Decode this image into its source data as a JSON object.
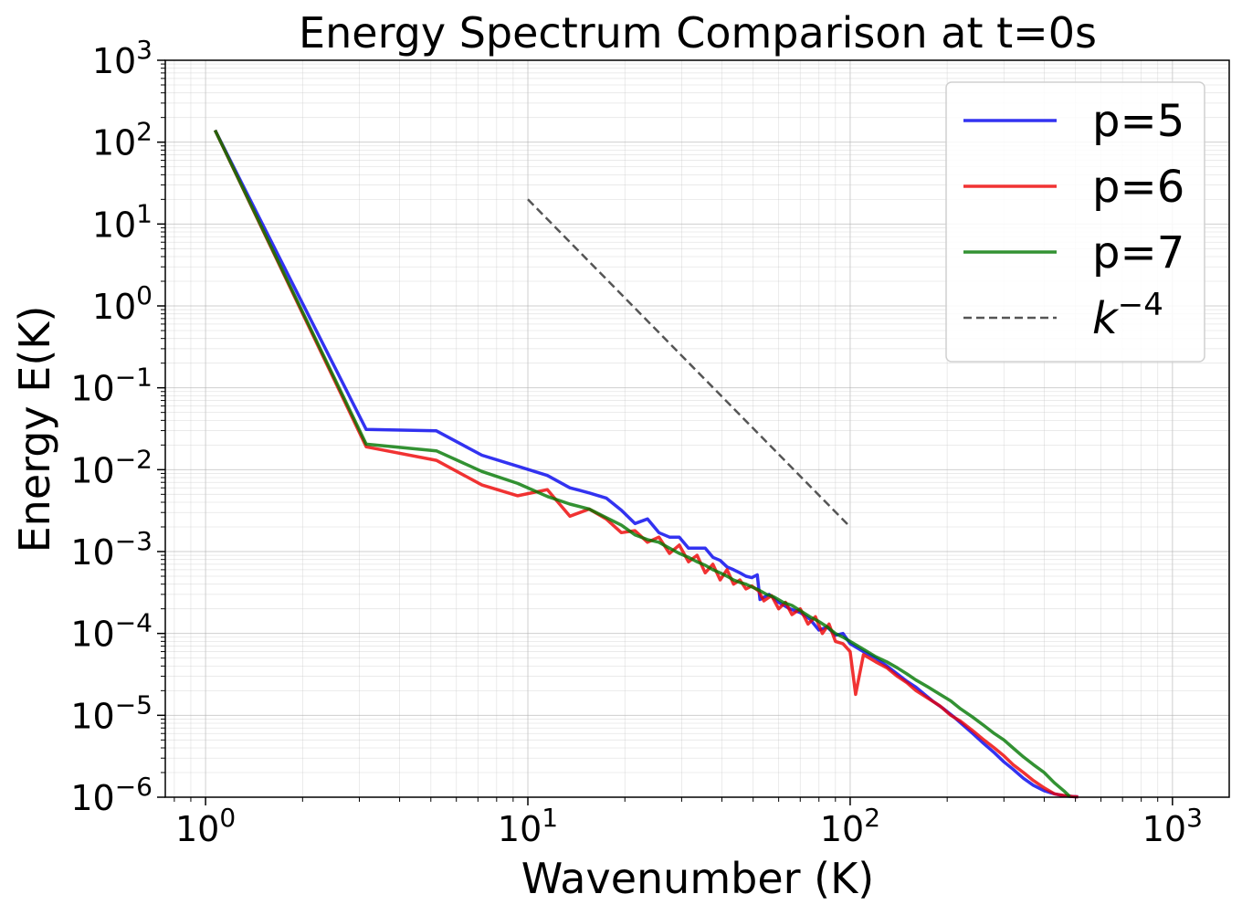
{
  "chart_data": {
    "type": "line",
    "title": "Energy Spectrum Comparison at t=0s",
    "xlabel": "Wavenumber (K)",
    "ylabel": "Energy E(K)",
    "xscale": "log",
    "yscale": "log",
    "xlim": [
      0.75,
      1500
    ],
    "ylim": [
      1e-06,
      1000
    ],
    "grid": true,
    "legend_position": "top-right",
    "x_ticks": [
      {
        "value": 1,
        "base": "10",
        "exp": "0"
      },
      {
        "value": 10,
        "base": "10",
        "exp": "1"
      },
      {
        "value": 100,
        "base": "10",
        "exp": "2"
      },
      {
        "value": 1000,
        "base": "10",
        "exp": "3"
      }
    ],
    "y_ticks": [
      {
        "value": 1e-06,
        "base": "10",
        "exp": "−6"
      },
      {
        "value": 1e-05,
        "base": "10",
        "exp": "−5"
      },
      {
        "value": 0.0001,
        "base": "10",
        "exp": "−4"
      },
      {
        "value": 0.001,
        "base": "10",
        "exp": "−3"
      },
      {
        "value": 0.01,
        "base": "10",
        "exp": "−2"
      },
      {
        "value": 0.1,
        "base": "10",
        "exp": "−1"
      },
      {
        "value": 1,
        "base": "10",
        "exp": "0"
      },
      {
        "value": 10,
        "base": "10",
        "exp": "1"
      },
      {
        "value": 100,
        "base": "10",
        "exp": "2"
      },
      {
        "value": 1000,
        "base": "10",
        "exp": "3"
      }
    ],
    "series": [
      {
        "name": "p=5",
        "color": "#0000ee",
        "x": [
          1.07,
          3.15,
          5.2,
          7.2,
          9.3,
          11.5,
          13.5,
          15.5,
          17.5,
          19.5,
          21.5,
          23.5,
          25.5,
          27.5,
          29.5,
          31.5,
          33.5,
          35.5,
          37.5,
          39.5,
          41.5,
          43.5,
          45.5,
          47.5,
          49.5,
          51.5,
          52.5,
          56,
          60,
          65,
          70,
          75,
          80,
          85,
          90,
          95,
          100,
          110,
          120,
          130,
          140,
          150,
          160,
          170,
          180,
          195,
          210,
          225,
          240,
          260,
          280,
          300,
          320,
          345,
          370,
          400,
          430,
          460,
          490,
          510
        ],
        "y": [
          140,
          0.031,
          0.0298,
          0.015,
          0.011,
          0.0085,
          0.006,
          0.0052,
          0.0045,
          0.0032,
          0.0022,
          0.0025,
          0.0017,
          0.0015,
          0.0015,
          0.0011,
          0.0011,
          0.0011,
          0.00085,
          0.00078,
          0.00065,
          0.0006,
          0.00055,
          0.0005,
          0.00048,
          0.00052,
          0.00026,
          0.0003,
          0.00024,
          0.0002,
          0.00018,
          0.00015,
          0.00011,
          0.00012,
          9.5e-05,
          0.0001,
          7.5e-05,
          6e-05,
          5e-05,
          4e-05,
          3.2e-05,
          2.6e-05,
          2.2e-05,
          1.8e-05,
          1.5e-05,
          1.2e-05,
          9.5e-06,
          7.5e-06,
          6e-06,
          4.5e-06,
          3.5e-06,
          2.7e-06,
          2.2e-06,
          1.7e-06,
          1.4e-06,
          1.2e-06,
          1.1e-06,
          1.04e-06,
          1.02e-06,
          1.01e-06
        ]
      },
      {
        "name": "p=6",
        "color": "#ee0000",
        "x": [
          1.07,
          3.15,
          5.2,
          7.2,
          9.3,
          11.5,
          13.5,
          15.5,
          17.5,
          19.5,
          21.5,
          23.5,
          25.5,
          27.5,
          29.5,
          31.5,
          33.5,
          35.5,
          37.5,
          39.5,
          41.5,
          43.5,
          45.5,
          47.5,
          49.5,
          52,
          54,
          57,
          60,
          63,
          66,
          70,
          74,
          78,
          82,
          86,
          90,
          95,
          100,
          104,
          110,
          120,
          130,
          140,
          150,
          160,
          175,
          190,
          205,
          220,
          240,
          260,
          280,
          300,
          320,
          345,
          370,
          400,
          430,
          460,
          490,
          510
        ],
        "y": [
          140,
          0.019,
          0.013,
          0.0065,
          0.0048,
          0.0057,
          0.0027,
          0.0033,
          0.0025,
          0.0017,
          0.0018,
          0.0013,
          0.0015,
          0.00095,
          0.0012,
          0.00075,
          0.0009,
          0.00055,
          0.0007,
          0.00045,
          0.0006,
          0.0004,
          0.00045,
          0.00035,
          0.00038,
          0.00033,
          0.00025,
          0.00029,
          0.0002,
          0.00024,
          0.00017,
          0.0002,
          0.00013,
          0.00016,
          0.0001,
          0.00013,
          8e-05,
          7.5e-05,
          6e-05,
          1.8e-05,
          5.5e-05,
          4.5e-05,
          3.8e-05,
          3e-05,
          2.5e-05,
          2e-05,
          1.6e-05,
          1.3e-05,
          1e-05,
          8.5e-06,
          6.5e-06,
          5e-06,
          4e-06,
          3.2e-06,
          2.5e-06,
          2e-06,
          1.6e-06,
          1.3e-06,
          1.1e-06,
          1.05e-06,
          1.02e-06,
          1.01e-06
        ]
      },
      {
        "name": "p=7",
        "color": "#007700",
        "x": [
          1.07,
          3.15,
          5.2,
          7.2,
          9.3,
          11.5,
          13.5,
          15.5,
          17.5,
          19.5,
          21.5,
          23.5,
          25.5,
          27.5,
          29.5,
          31.5,
          33.5,
          35.5,
          37.5,
          39.5,
          41.5,
          43.5,
          45.5,
          47.5,
          49.5,
          52,
          55,
          58,
          62,
          66,
          70,
          75,
          80,
          85,
          90,
          95,
          100,
          110,
          120,
          130,
          140,
          150,
          160,
          175,
          190,
          205,
          220,
          240,
          260,
          280,
          300,
          320,
          345,
          370,
          400,
          430,
          460,
          480
        ],
        "y": [
          140,
          0.0205,
          0.017,
          0.0095,
          0.0068,
          0.0047,
          0.0038,
          0.0033,
          0.0026,
          0.0021,
          0.0016,
          0.0014,
          0.0013,
          0.0011,
          0.00095,
          0.00085,
          0.00075,
          0.00068,
          0.0006,
          0.00055,
          0.0005,
          0.00045,
          0.00042,
          0.0004,
          0.00037,
          0.00034,
          0.0003,
          0.00028,
          0.00024,
          0.00022,
          0.00019,
          0.00016,
          0.00014,
          0.00012,
          0.0001,
          9e-05,
          8e-05,
          6.4e-05,
          5.2e-05,
          4.5e-05,
          3.8e-05,
          3.2e-05,
          2.7e-05,
          2.2e-05,
          1.8e-05,
          1.5e-05,
          1.2e-05,
          9.5e-06,
          7.5e-06,
          6e-06,
          5e-06,
          4e-06,
          3.1e-06,
          2.5e-06,
          2e-06,
          1.5e-06,
          1.2e-06,
          1.02e-06
        ]
      },
      {
        "name": "k^{-4}",
        "color": "#555555",
        "dashed": true,
        "x": [
          10,
          100
        ],
        "y": [
          20,
          0.002
        ]
      }
    ],
    "legend": [
      {
        "label": "p=5",
        "color": "#0000ee",
        "dashed": false
      },
      {
        "label": "p=6",
        "color": "#ee0000",
        "dashed": false
      },
      {
        "label": "p=7",
        "color": "#007700",
        "dashed": false
      },
      {
        "label_base": "k",
        "label_exp": "−4",
        "color": "#555555",
        "dashed": true
      }
    ]
  }
}
